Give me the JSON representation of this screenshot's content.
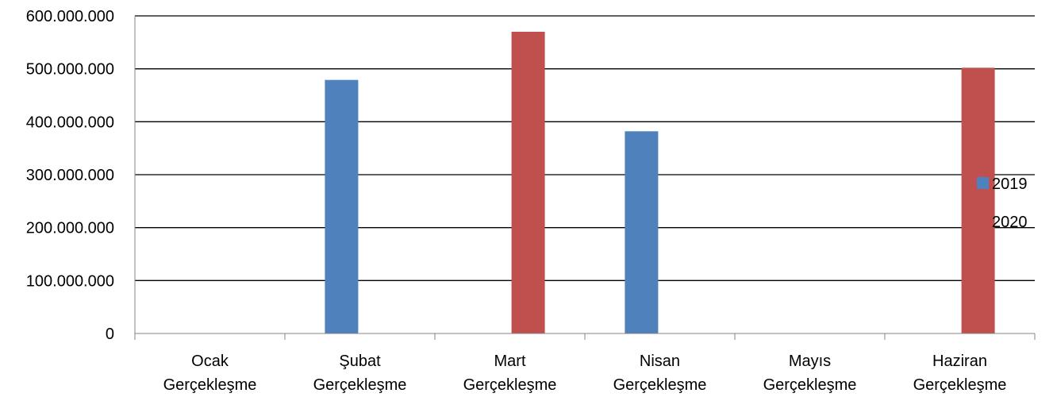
{
  "chart_data": {
    "type": "bar",
    "categories": [
      [
        "Ocak",
        "Gerçekleşme"
      ],
      [
        "Şubat",
        "Gerçekleşme"
      ],
      [
        "Mart",
        "Gerçekleşme"
      ],
      [
        "Nisan",
        "Gerçekleşme"
      ],
      [
        "Mayıs",
        "Gerçekleşme"
      ],
      [
        "Haziran",
        "Gerçekleşme"
      ]
    ],
    "series": [
      {
        "name": "2019",
        "color": "#4F81BD",
        "values": [
          0,
          479000000,
          0,
          382000000,
          0,
          0
        ]
      },
      {
        "name": "2020",
        "color": "#C0504D",
        "values": [
          0,
          0,
          570000000,
          0,
          0,
          502000000
        ]
      }
    ],
    "yticks": [
      "0",
      "100.000.000",
      "200.000.000",
      "300.000.000",
      "400.000.000",
      "500.000.000",
      "600.000.000"
    ],
    "ylim": [
      0,
      600000000
    ],
    "grid": true,
    "legend": "right",
    "title": "",
    "xlabel": "",
    "ylabel": ""
  }
}
